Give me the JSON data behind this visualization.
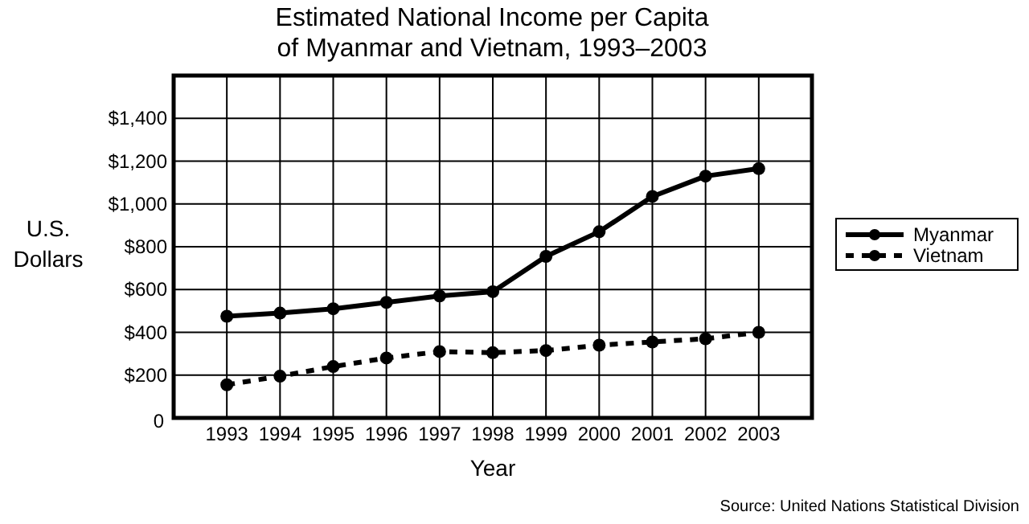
{
  "chart_data": {
    "type": "line",
    "title": "Estimated National Income per Capita\nof Myanmar and Vietnam, 1993–2003",
    "xlabel": "Year",
    "ylabel": "U.S.\nDollars",
    "annotations": [
      "Source: United Nations Statistical Division"
    ],
    "x": [
      1993,
      1994,
      1995,
      1996,
      1997,
      1998,
      1999,
      2000,
      2001,
      2002,
      2003
    ],
    "xlim": [
      1992,
      2004
    ],
    "xticks": [
      1993,
      1994,
      1995,
      1996,
      1997,
      1998,
      1999,
      2000,
      2001,
      2002,
      2003
    ],
    "ylim": [
      0,
      1600
    ],
    "yticks": [
      {
        "value": 0,
        "label": "0"
      },
      {
        "value": 200,
        "label": "$200"
      },
      {
        "value": 400,
        "label": "$400"
      },
      {
        "value": 600,
        "label": "$600"
      },
      {
        "value": 800,
        "label": "$800"
      },
      {
        "value": 1000,
        "label": "$1,000"
      },
      {
        "value": 1200,
        "label": "$1,200"
      },
      {
        "value": 1400,
        "label": "$1,400"
      },
      {
        "value": 1600,
        "label": null
      }
    ],
    "grid": true,
    "legend": "right",
    "marker": "circle",
    "series": [
      {
        "name": "Myanmar",
        "color": "#000000",
        "line_style": "solid",
        "values": [
          475,
          490,
          510,
          540,
          570,
          590,
          755,
          870,
          1035,
          1130,
          1165
        ]
      },
      {
        "name": "Vietnam",
        "color": "#000000",
        "line_style": "dashed",
        "values": [
          155,
          195,
          240,
          280,
          310,
          305,
          315,
          340,
          355,
          370,
          400
        ]
      }
    ]
  }
}
